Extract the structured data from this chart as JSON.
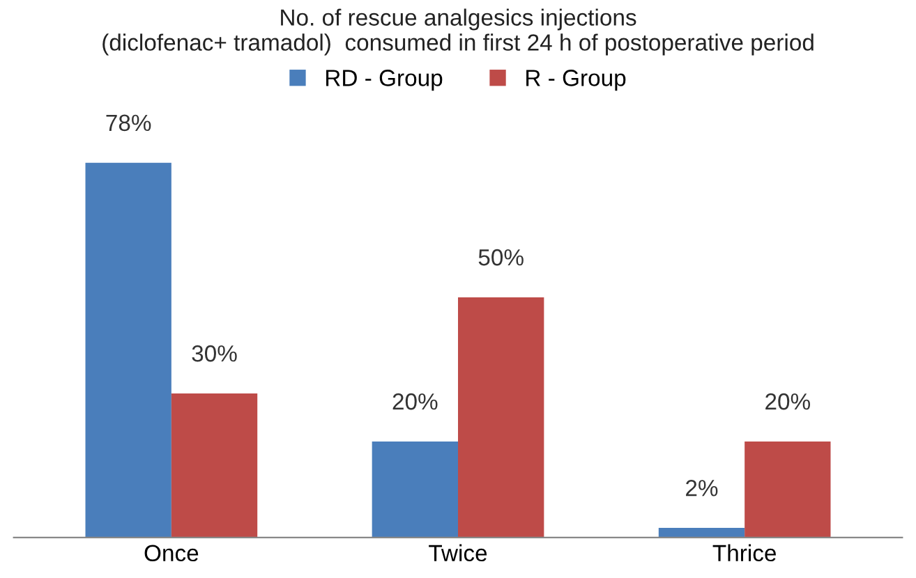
{
  "chart_data": {
    "type": "bar",
    "title": "No. of rescue analgesics injections\n(diclofenac+ tramadol)  consumed in first 24 h of postoperative period",
    "categories": [
      "Once",
      "Twice",
      "Thrice"
    ],
    "series": [
      {
        "name": "RD - Group",
        "color": "#4a7ebb",
        "values": [
          78,
          20,
          2
        ],
        "value_labels": [
          "78%",
          "20%",
          "2%"
        ]
      },
      {
        "name": "R - Group",
        "color": "#be4b48",
        "values": [
          30,
          50,
          20
        ],
        "value_labels": [
          "30%",
          "50%",
          "20%"
        ]
      }
    ],
    "legend": "top",
    "grid": false,
    "tick_labels": "x"
  }
}
